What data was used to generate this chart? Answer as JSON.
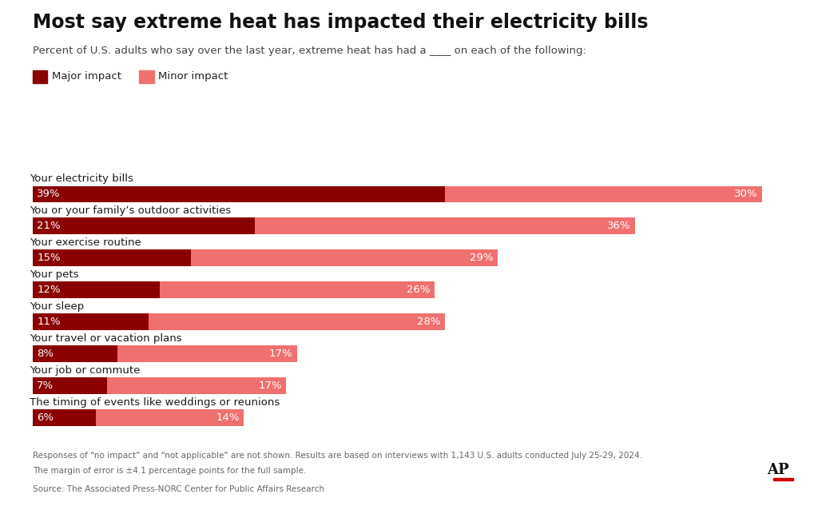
{
  "title": "Most say extreme heat has impacted their electricity bills",
  "subtitle": "Percent of U.S. adults who say over the last year, extreme heat has had a ____ on each of the following:",
  "legend_major": "Major impact",
  "legend_minor": "Minor impact",
  "categories": [
    "Your electricity bills",
    "You or your family’s outdoor activities",
    "Your exercise routine",
    "Your pets",
    "Your sleep",
    "Your travel or vacation plans",
    "Your job or commute",
    "The timing of events like weddings or reunions"
  ],
  "major_values": [
    39,
    21,
    15,
    12,
    11,
    8,
    7,
    6
  ],
  "minor_values": [
    30,
    36,
    29,
    26,
    28,
    17,
    17,
    14
  ],
  "major_color": "#8B0000",
  "minor_color": "#F07070",
  "background_color": "#FFFFFF",
  "footnote1": "Responses of “no impact” and “not applicable” are not shown. Results are based on interviews with 1,143 U.S. adults conducted July 25-29, 2024.",
  "footnote2": "The margin of error is ±4.1 percentage points for the full sample.",
  "source": "Source: The Associated Press-NORC Center for Public Affairs Research",
  "ap_logo": "AP"
}
